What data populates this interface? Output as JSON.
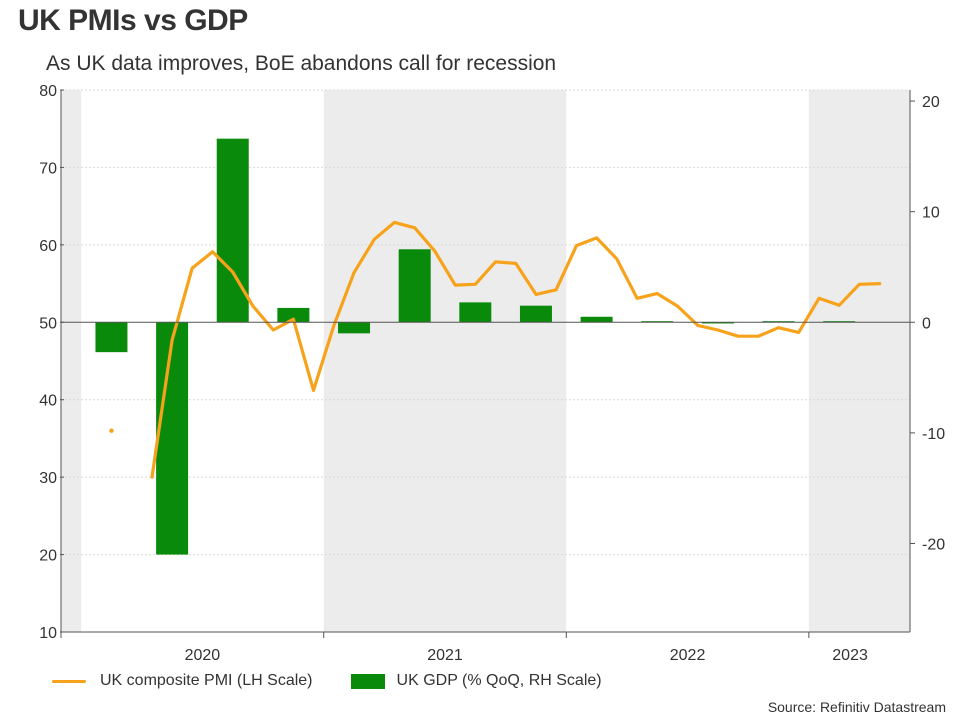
{
  "header": {
    "title": "UK PMIs vs GDP",
    "subtitle": "As UK data improves, BoE abandons call for recession"
  },
  "legend": {
    "pmi_label": "UK composite PMI (LH Scale)",
    "gdp_label": "UK GDP (% QoQ, RH Scale)"
  },
  "source": "Source: Refinitiv Datastream",
  "colors": {
    "pmi_line": "#f7a21b",
    "gdp_bar": "#0a8a0a",
    "shade": "#ececec",
    "grid": "#d9d9d9"
  },
  "chart_data": {
    "type": "bar+line",
    "title": "UK PMIs vs GDP",
    "subtitle": "As UK data improves, BoE abandons call for recession",
    "left_axis": {
      "label": "UK composite PMI (LH Scale)",
      "range": [
        10,
        80
      ],
      "ticks": [
        10,
        20,
        30,
        40,
        50,
        60,
        70,
        80
      ]
    },
    "right_axis": {
      "label": "UK GDP (% QoQ, RH Scale)",
      "range": [
        -28,
        21
      ],
      "ticks": [
        -20,
        -10,
        0,
        10,
        20
      ]
    },
    "x_axis": {
      "range": [
        2019.917,
        2023.417
      ],
      "year_labels": [
        {
          "label": "2020",
          "x": 2020.5
        },
        {
          "label": "2021",
          "x": 2021.5
        },
        {
          "label": "2022",
          "x": 2022.5
        },
        {
          "label": "2023",
          "x": 2023.17
        }
      ],
      "year_boundaries": [
        2021.0,
        2022.0,
        2023.0
      ],
      "shaded_years": [
        [
          2019.917,
          2020.0
        ],
        [
          2021.0,
          2022.0
        ],
        [
          2023.0,
          2023.417
        ]
      ]
    },
    "series": [
      {
        "name": "UK GDP (% QoQ, RH Scale)",
        "type": "bar",
        "axis": "right",
        "x": [
          2020.125,
          2020.375,
          2020.625,
          2020.875,
          2021.125,
          2021.375,
          2021.625,
          2021.875,
          2022.125,
          2022.375,
          2022.625,
          2022.875,
          2023.125
        ],
        "values": [
          -2.7,
          -21.0,
          16.6,
          1.3,
          -1.0,
          6.6,
          1.8,
          1.5,
          0.5,
          0.1,
          -0.1,
          0.1,
          0.1
        ]
      },
      {
        "name": "UK composite PMI (LH Scale)",
        "type": "line",
        "axis": "left",
        "isolated_point": {
          "x": 2020.125,
          "y": 36.0
        },
        "x": [
          2020.292,
          2020.375,
          2020.458,
          2020.542,
          2020.625,
          2020.708,
          2020.792,
          2020.875,
          2020.958,
          2021.042,
          2021.125,
          2021.208,
          2021.292,
          2021.375,
          2021.458,
          2021.542,
          2021.625,
          2021.708,
          2021.792,
          2021.875,
          2021.958,
          2022.042,
          2022.125,
          2022.208,
          2022.292,
          2022.375,
          2022.458,
          2022.542,
          2022.625,
          2022.708,
          2022.792,
          2022.875,
          2022.958,
          2023.042,
          2023.125,
          2023.208,
          2023.292
        ],
        "values": [
          30.0,
          47.7,
          57.0,
          59.1,
          56.5,
          52.1,
          49.0,
          50.4,
          41.2,
          49.6,
          56.4,
          60.7,
          62.9,
          62.2,
          59.2,
          54.8,
          54.9,
          57.8,
          57.6,
          53.6,
          54.2,
          59.9,
          60.9,
          58.2,
          53.1,
          53.7,
          52.1,
          49.6,
          49.0,
          48.2,
          48.2,
          49.3,
          48.7,
          53.1,
          52.2,
          54.9,
          55.0
        ]
      }
    ]
  }
}
